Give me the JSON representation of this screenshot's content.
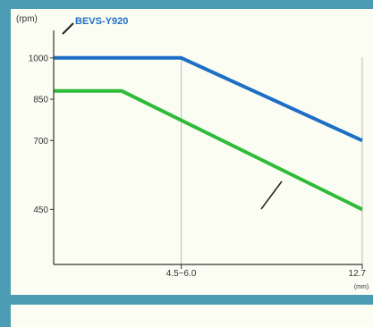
{
  "chart_data": {
    "type": "line",
    "ylabel": "(rpm)",
    "xunit": "(mm)",
    "yticks": [
      1000,
      850,
      700,
      450
    ],
    "xticks": [
      "4.5~6.0",
      "12.7"
    ],
    "ylim": [
      250,
      1100
    ],
    "xlim": [
      0,
      12.7
    ],
    "grid": true,
    "series": [
      {
        "name": "BEVS-Y920",
        "color": "#1d6fc6",
        "points": [
          [
            0,
            1000
          ],
          [
            5.25,
            1000
          ],
          [
            12.7,
            700
          ]
        ]
      },
      {
        "name": "",
        "color": "#2fbb3a",
        "points": [
          [
            0,
            880
          ],
          [
            2.8,
            880
          ],
          [
            12.7,
            450
          ]
        ]
      }
    ]
  },
  "colors": {
    "background": "#4c9cb4",
    "panel": "#fbfdf3",
    "axis": "#333333",
    "grid": "#bbbbbb"
  }
}
